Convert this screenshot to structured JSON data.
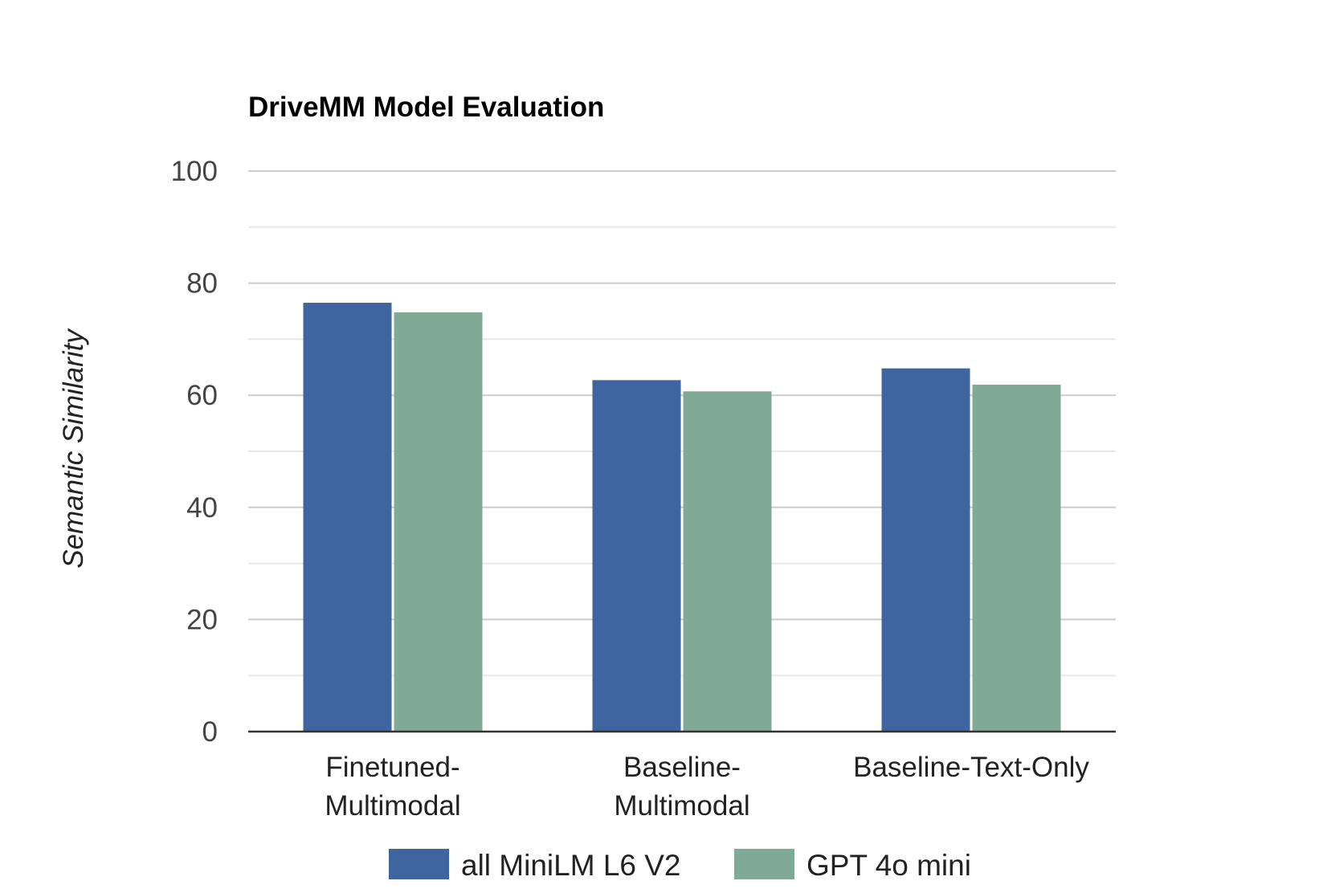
{
  "chart_data": {
    "type": "bar",
    "title": "DriveMM Model Evaluation",
    "xlabel": "",
    "ylabel": "Semantic Similarity",
    "categories": [
      [
        "Finetuned-",
        "Multimodal"
      ],
      [
        "Baseline-",
        "Multimodal"
      ],
      [
        "Baseline-Text-Only"
      ]
    ],
    "series": [
      {
        "name": "all MiniLM L6 V2",
        "color": "#3e659d",
        "values": [
          76.5,
          62.7,
          64.8
        ]
      },
      {
        "name": "GPT 4o mini",
        "color": "#80aa96",
        "values": [
          74.8,
          60.7,
          61.9
        ]
      }
    ],
    "ylim": [
      0,
      100
    ],
    "yticks": [
      0,
      20,
      40,
      60,
      80,
      100
    ],
    "minor_gridlines": true,
    "grid": true,
    "legend": "bottom"
  }
}
